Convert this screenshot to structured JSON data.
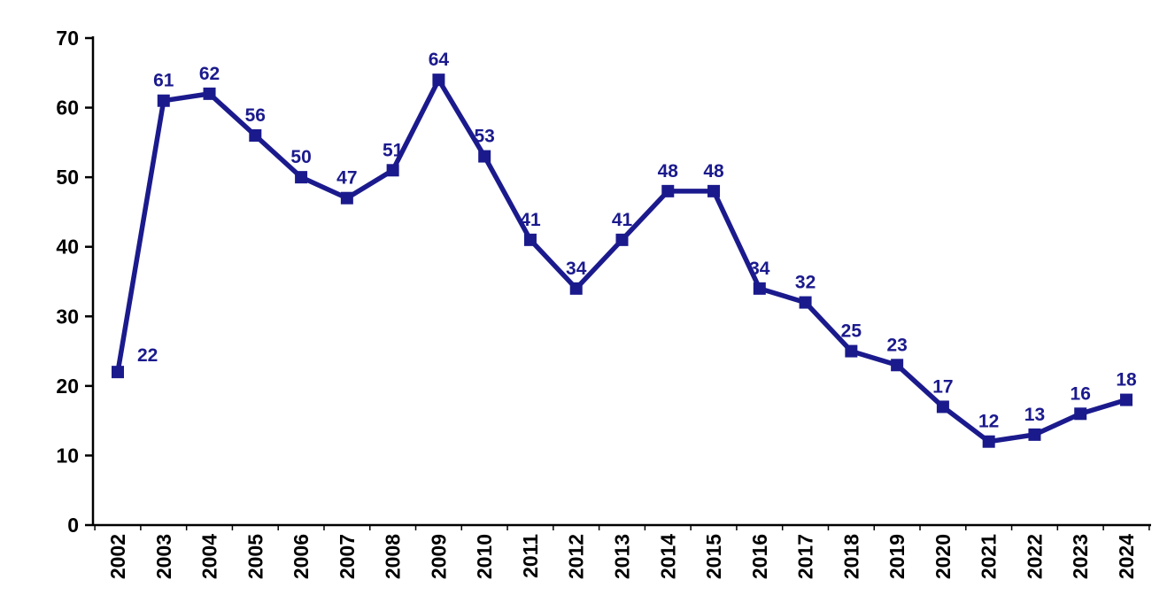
{
  "chart_data": {
    "type": "line",
    "title": "",
    "xlabel": "",
    "ylabel": "",
    "categories": [
      "2002",
      "2003",
      "2004",
      "2005",
      "2006",
      "2007",
      "2008",
      "2009",
      "2010",
      "2011",
      "2012",
      "2013",
      "2014",
      "2015",
      "2016",
      "2017",
      "2018",
      "2019",
      "2020",
      "2021",
      "2022",
      "2023",
      "2024"
    ],
    "series": [
      {
        "name": "annual-values",
        "values": [
          22,
          61,
          62,
          56,
          50,
          47,
          51,
          64,
          53,
          41,
          34,
          41,
          48,
          48,
          34,
          32,
          25,
          23,
          17,
          12,
          13,
          16,
          18
        ]
      }
    ],
    "data_labels": [
      "22",
      "61",
      "62",
      "56",
      "50",
      "47",
      "51",
      "64",
      "53",
      "41",
      "34",
      "41",
      "48",
      "48",
      "34",
      "32",
      "25",
      "23",
      "17",
      "12",
      "13",
      "16",
      "18"
    ],
    "ylim": [
      0,
      70
    ],
    "ytick_step": 10,
    "yticks": [
      "0",
      "10",
      "20",
      "30",
      "40",
      "50",
      "60",
      "70"
    ],
    "grid": false,
    "legend": false,
    "marker": "square",
    "colors": {
      "line": "#1b1a8d",
      "marker": "#1b1a8d",
      "data_label": "#1b1a8d",
      "axis": "#000000",
      "tick_label": "#000000",
      "background": "#ffffff"
    }
  }
}
